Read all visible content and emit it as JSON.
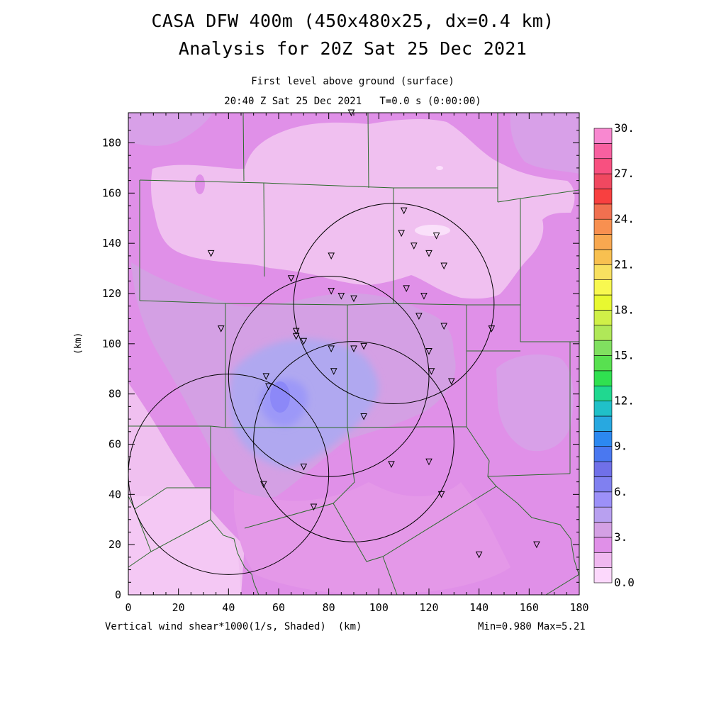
{
  "title": "CASA DFW 400m (450x480x25, dx=0.4 km)",
  "subtitle": "Analysis for 20Z Sat 25 Dec 2021",
  "level_label": "First level above ground (surface)",
  "time_label": "20:40 Z Sat 25 Dec 2021   T=0.0 s (0:00:00)",
  "footer_left": "Vertical wind shear*1000(1/s, Shaded)  (km)",
  "footer_right": "Min=0.980 Max=5.21",
  "axes": {
    "xlabel": "(km)",
    "ylabel": "(km)",
    "x_ticks": [
      0,
      20,
      40,
      60,
      80,
      100,
      120,
      140,
      160,
      180
    ],
    "y_ticks": [
      0,
      20,
      40,
      60,
      80,
      100,
      120,
      140,
      160,
      180
    ],
    "xlim": [
      0,
      180
    ],
    "ylim": [
      0,
      192
    ]
  },
  "colorbar": {
    "labels": [
      "0.0",
      "3.",
      "6.",
      "9.",
      "12.",
      "15.",
      "18.",
      "21.",
      "24.",
      "27.",
      "30."
    ],
    "colors": [
      "#fcd8fc",
      "#f0b8f0",
      "#e090e8",
      "#d4a0e4",
      "#b8a0f0",
      "#9c90f8",
      "#8080f0",
      "#7070e8",
      "#4a78f0",
      "#2c88f0",
      "#28a8e0",
      "#20c0c8",
      "#20d890",
      "#30e050",
      "#58e050",
      "#80e060",
      "#b0e858",
      "#d0f048",
      "#e8f830",
      "#f8f850",
      "#f8e060",
      "#f8c050",
      "#f8a850",
      "#f89050",
      "#f07050",
      "#f84040",
      "#f04860",
      "#f85080",
      "#f860a0",
      "#f888d0"
    ]
  },
  "colors": {
    "boundary": "#2e6b2e",
    "background_field": "#e090e8"
  },
  "chart_data": {
    "type": "heatmap",
    "variable": "Vertical wind shear*1000(1/s, Shaded)",
    "min": 0.98,
    "max": 5.21,
    "radars": [
      {
        "center": [
          40,
          48
        ],
        "radius": 40
      },
      {
        "center": [
          80,
          87
        ],
        "radius": 40
      },
      {
        "center": [
          106,
          116
        ],
        "radius": 40
      },
      {
        "center": [
          90,
          61
        ],
        "radius": 40
      }
    ],
    "stations": [
      [
        33,
        136
      ],
      [
        110,
        153
      ],
      [
        109,
        144
      ],
      [
        114,
        139
      ],
      [
        120,
        136
      ],
      [
        123,
        143
      ],
      [
        126,
        131
      ],
      [
        65,
        126
      ],
      [
        81,
        135
      ],
      [
        81,
        121
      ],
      [
        85,
        119
      ],
      [
        90,
        118
      ],
      [
        111,
        122
      ],
      [
        118,
        119
      ],
      [
        116,
        111
      ],
      [
        126,
        107
      ],
      [
        145,
        106
      ],
      [
        37,
        106
      ],
      [
        67,
        105
      ],
      [
        67,
        103
      ],
      [
        70,
        101
      ],
      [
        81,
        98
      ],
      [
        90,
        98
      ],
      [
        94,
        99
      ],
      [
        120,
        97
      ],
      [
        121,
        89
      ],
      [
        129,
        85
      ],
      [
        82,
        89
      ],
      [
        55,
        87
      ],
      [
        56,
        83
      ],
      [
        94,
        71
      ],
      [
        70,
        51
      ],
      [
        105,
        52
      ],
      [
        120,
        53
      ],
      [
        125,
        40
      ],
      [
        54,
        44
      ],
      [
        74,
        35
      ],
      [
        140,
        16
      ],
      [
        163,
        20
      ],
      [
        89,
        192
      ]
    ],
    "shading_regions": [
      {
        "level": "lightest (~1)",
        "area": "north central and western edge"
      },
      {
        "level": "highest (~5)",
        "area": "near x=60 km, y=80 km"
      }
    ]
  }
}
